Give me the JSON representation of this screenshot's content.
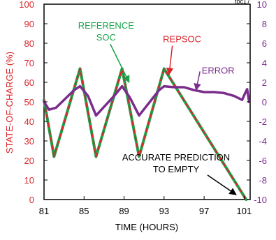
{
  "chart_data": {
    "type": "line",
    "figure_id": "toc17",
    "xlabel": "TIME (HOURS)",
    "ylabel_left": "STATE-OF-CHARGE (%)",
    "xlim": [
      81,
      101.6
    ],
    "ylim_left": [
      0,
      100
    ],
    "ylim_right": [
      -10,
      10
    ],
    "x_ticks": [
      81,
      85,
      89,
      93,
      97,
      101
    ],
    "y_ticks_left": [
      0,
      10,
      20,
      30,
      40,
      50,
      60,
      70,
      80,
      90,
      100
    ],
    "y_ticks_right": [
      -10,
      -8,
      -6,
      -4,
      -2,
      0,
      2,
      4,
      6,
      8,
      10
    ],
    "grid": false,
    "colors": {
      "left_axis": "#d9262b",
      "right_axis": "#7b2d8e",
      "reference_soc": "#1aa34a",
      "repsoc": "#d9262b",
      "error": "#7b2d8e",
      "annotation": "#000000"
    },
    "series": [
      {
        "name": "REFERENCE SOC",
        "axis": "left",
        "style": "solid",
        "x": [
          81,
          82,
          84.6,
          86.2,
          88.8,
          90.5,
          93,
          101.2
        ],
        "y": [
          51,
          22,
          67,
          22,
          67,
          22,
          67,
          0
        ]
      },
      {
        "name": "REPSOC",
        "axis": "left",
        "style": "dashed",
        "x": [
          81,
          82,
          84.6,
          86.2,
          88.8,
          90.5,
          93,
          101.2
        ],
        "y": [
          51,
          22,
          67,
          22,
          67,
          22,
          67,
          0
        ]
      },
      {
        "name": "ERROR",
        "axis": "right",
        "style": "solid",
        "x": [
          81,
          81.5,
          82.2,
          84,
          84.6,
          85.4,
          86.2,
          88,
          88.8,
          89.6,
          90.5,
          92.5,
          93,
          94,
          95,
          96,
          97,
          98,
          99,
          100,
          100.8,
          101.1,
          101.3,
          101.5
        ],
        "y": [
          0,
          -0.8,
          -0.6,
          1.2,
          1.6,
          0.6,
          -1.4,
          0.6,
          1.6,
          0.4,
          -1.4,
          1.2,
          1.6,
          1.5,
          1.5,
          1.2,
          1.0,
          1.0,
          0.9,
          0.6,
          0.2,
          0.9,
          1.3,
          0
        ]
      }
    ],
    "annotations": [
      {
        "id": "label-reference-soc",
        "lines": [
          "REFERENCE",
          "SOC"
        ],
        "color": "#1aa34a",
        "at": [
          87.2,
          87.5
        ],
        "arrow_to": [
          89.5,
          60
        ]
      },
      {
        "id": "label-repsoc",
        "lines": [
          "REPSOC"
        ],
        "color": "#d9262b",
        "at": [
          94.8,
          80.5
        ],
        "arrow_to": [
          93.5,
          64
        ]
      },
      {
        "id": "label-error",
        "lines": [
          "ERROR"
        ],
        "color": "#7b2d8e",
        "at": [
          98.4,
          64.5
        ],
        "arrow_to": [
          96.2,
          56
        ]
      },
      {
        "id": "label-prediction",
        "lines": [
          "ACCURATE PREDICTION",
          "TO EMPTY"
        ],
        "color": "#000000",
        "at": [
          94.2,
          20
        ],
        "arrow_to": [
          100.2,
          2.5
        ]
      }
    ]
  }
}
